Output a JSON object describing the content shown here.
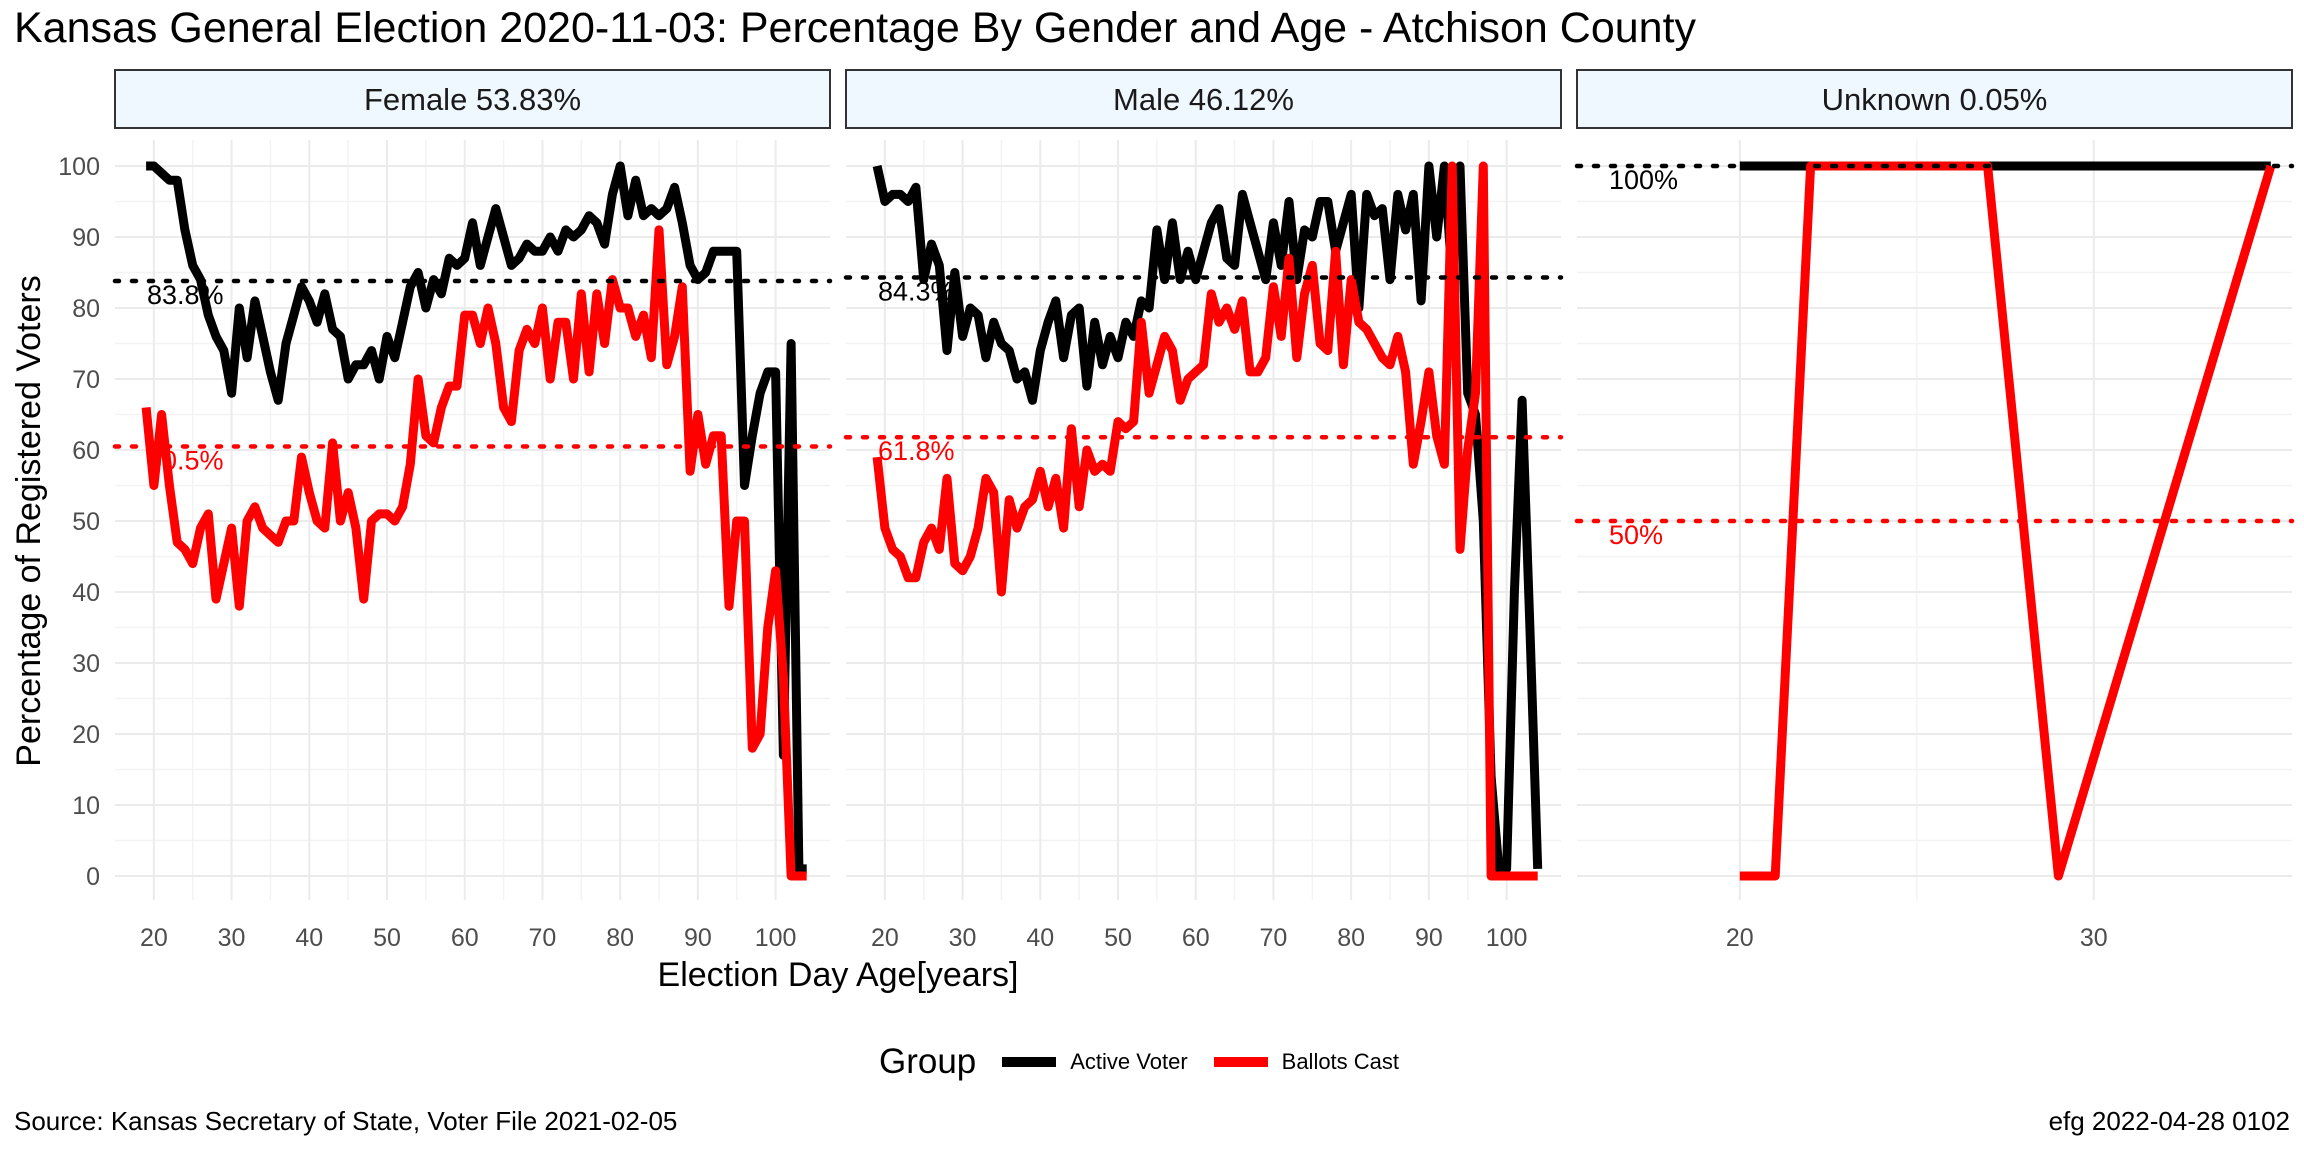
{
  "title": "Kansas General Election 2020-11-03:  Percentage By Gender and Age - Atchison County",
  "source": "Source:  Kansas Secretary of State, Voter File  2021-02-05",
  "stamp": "efg 2022-04-28 0102",
  "colors": {
    "active": "#000000",
    "ballots": "#ff0000",
    "strip_fill": "#f0f8ff",
    "grid": "#ebebeb"
  },
  "chart_data": {
    "type": "line",
    "xlabel": "Election Day Age[years]",
    "ylabel": "Percentage of Registered Voters",
    "ylim": [
      0,
      100
    ],
    "yticks": [
      0,
      10,
      20,
      30,
      40,
      50,
      60,
      70,
      80,
      90,
      100
    ],
    "grid": true,
    "legend": {
      "title": "Group",
      "position": "bottom",
      "entries": [
        "Active Voter",
        "Ballots Cast"
      ]
    },
    "panels": [
      {
        "strip": "Female 53.83%",
        "xlim": [
          15,
          107
        ],
        "xticks": [
          20,
          30,
          40,
          50,
          60,
          70,
          80,
          90,
          100
        ],
        "ref_lines": [
          {
            "series": "Active Voter",
            "value": 83.8,
            "label": "83.8%"
          },
          {
            "series": "Ballots Cast",
            "value": 60.5,
            "label": "60.5%"
          }
        ],
        "series": [
          {
            "name": "Active Voter",
            "x": [
              19,
              20,
              21,
              22,
              23,
              24,
              25,
              26,
              27,
              28,
              29,
              30,
              31,
              32,
              33,
              34,
              35,
              36,
              37,
              38,
              39,
              40,
              41,
              42,
              43,
              44,
              45,
              46,
              47,
              48,
              49,
              50,
              51,
              52,
              53,
              54,
              55,
              56,
              57,
              58,
              59,
              60,
              61,
              62,
              63,
              64,
              65,
              66,
              67,
              68,
              69,
              70,
              71,
              72,
              73,
              74,
              75,
              76,
              77,
              78,
              79,
              80,
              81,
              82,
              83,
              84,
              85,
              86,
              87,
              88,
              89,
              90,
              91,
              92,
              93,
              94,
              95,
              96,
              97,
              98,
              99,
              100,
              101,
              102,
              103,
              104
            ],
            "y": [
              100,
              100,
              99,
              98,
              98,
              91,
              86,
              84,
              79,
              76,
              74,
              68,
              80,
              73,
              81,
              76,
              71,
              67,
              75,
              79,
              83,
              81,
              78,
              82,
              77,
              76,
              70,
              72,
              72,
              74,
              70,
              76,
              73,
              78,
              83,
              85,
              80,
              84,
              82,
              87,
              86,
              87,
              92,
              86,
              90,
              94,
              90,
              86,
              87,
              89,
              88,
              88,
              90,
              88,
              91,
              90,
              91,
              93,
              92,
              89,
              96,
              100,
              93,
              98,
              93,
              94,
              93,
              94,
              97,
              92,
              86,
              84,
              85,
              88,
              88,
              88,
              88,
              55,
              62,
              68,
              71,
              71,
              17,
              75,
              1,
              1
            ]
          },
          {
            "name": "Ballots Cast",
            "x": [
              19,
              20,
              21,
              22,
              23,
              24,
              25,
              26,
              27,
              28,
              29,
              30,
              31,
              32,
              33,
              34,
              35,
              36,
              37,
              38,
              39,
              40,
              41,
              42,
              43,
              44,
              45,
              46,
              47,
              48,
              49,
              50,
              51,
              52,
              53,
              54,
              55,
              56,
              57,
              58,
              59,
              60,
              61,
              62,
              63,
              64,
              65,
              66,
              67,
              68,
              69,
              70,
              71,
              72,
              73,
              74,
              75,
              76,
              77,
              78,
              79,
              80,
              81,
              82,
              83,
              84,
              85,
              86,
              87,
              88,
              89,
              90,
              91,
              92,
              93,
              94,
              95,
              96,
              97,
              98,
              99,
              100,
              101,
              102,
              103,
              104
            ],
            "y": [
              66,
              55,
              65,
              55,
              47,
              46,
              44,
              49,
              51,
              39,
              44,
              49,
              38,
              50,
              52,
              49,
              48,
              47,
              50,
              50,
              59,
              54,
              50,
              49,
              61,
              50,
              54,
              49,
              39,
              50,
              51,
              51,
              50,
              52,
              58,
              70,
              62,
              61,
              66,
              69,
              69,
              79,
              79,
              75,
              80,
              75,
              66,
              64,
              74,
              77,
              75,
              80,
              70,
              78,
              78,
              70,
              82,
              71,
              82,
              75,
              84,
              80,
              80,
              76,
              79,
              73,
              91,
              72,
              76,
              83,
              57,
              65,
              58,
              62,
              62,
              38,
              50,
              50,
              18,
              20,
              35,
              43,
              28,
              0,
              0,
              0
            ]
          }
        ]
      },
      {
        "strip": "Male 46.12%",
        "xlim": [
          15,
          107
        ],
        "xticks": [
          20,
          30,
          40,
          50,
          60,
          70,
          80,
          90,
          100
        ],
        "ref_lines": [
          {
            "series": "Active Voter",
            "value": 84.3,
            "label": "84.3%"
          },
          {
            "series": "Ballots Cast",
            "value": 61.8,
            "label": "61.8%"
          }
        ],
        "series": [
          {
            "name": "Active Voter",
            "x": [
              19,
              20,
              21,
              22,
              23,
              24,
              25,
              26,
              27,
              28,
              29,
              30,
              31,
              32,
              33,
              34,
              35,
              36,
              37,
              38,
              39,
              40,
              41,
              42,
              43,
              44,
              45,
              46,
              47,
              48,
              49,
              50,
              51,
              52,
              53,
              54,
              55,
              56,
              57,
              58,
              59,
              60,
              61,
              62,
              63,
              64,
              65,
              66,
              67,
              68,
              69,
              70,
              71,
              72,
              73,
              74,
              75,
              76,
              77,
              78,
              79,
              80,
              81,
              82,
              83,
              84,
              85,
              86,
              87,
              88,
              89,
              90,
              91,
              92,
              93,
              94,
              95,
              96,
              97,
              98,
              99,
              100,
              101,
              102,
              103,
              104
            ],
            "y": [
              100,
              95,
              96,
              96,
              95,
              97,
              84,
              89,
              86,
              74,
              85,
              76,
              80,
              79,
              73,
              78,
              75,
              74,
              70,
              71,
              67,
              74,
              78,
              81,
              73,
              79,
              80,
              69,
              78,
              72,
              76,
              73,
              78,
              76,
              81,
              80,
              91,
              84,
              92,
              84,
              88,
              84,
              88,
              92,
              94,
              87,
              86,
              96,
              92,
              88,
              84,
              92,
              86,
              95,
              84,
              91,
              90,
              95,
              95,
              88,
              92,
              96,
              80,
              96,
              93,
              94,
              84,
              96,
              91,
              96,
              81,
              100,
              90,
              100,
              84,
              100,
              68,
              65,
              50,
              14,
              1,
              1,
              40,
              67,
              35,
              1
            ]
          },
          {
            "name": "Ballots Cast",
            "x": [
              19,
              20,
              21,
              22,
              23,
              24,
              25,
              26,
              27,
              28,
              29,
              30,
              31,
              32,
              33,
              34,
              35,
              36,
              37,
              38,
              39,
              40,
              41,
              42,
              43,
              44,
              45,
              46,
              47,
              48,
              49,
              50,
              51,
              52,
              53,
              54,
              55,
              56,
              57,
              58,
              59,
              60,
              61,
              62,
              63,
              64,
              65,
              66,
              67,
              68,
              69,
              70,
              71,
              72,
              73,
              74,
              75,
              76,
              77,
              78,
              79,
              80,
              81,
              82,
              83,
              84,
              85,
              86,
              87,
              88,
              89,
              90,
              91,
              92,
              93,
              94,
              95,
              96,
              97,
              98,
              99,
              100,
              101,
              102,
              103,
              104
            ],
            "y": [
              59,
              49,
              46,
              45,
              42,
              42,
              47,
              49,
              46,
              56,
              44,
              43,
              45,
              49,
              56,
              54,
              40,
              53,
              49,
              52,
              53,
              57,
              52,
              56,
              49,
              63,
              52,
              60,
              57,
              58,
              57,
              64,
              63,
              64,
              78,
              68,
              72,
              76,
              74,
              67,
              70,
              71,
              72,
              82,
              78,
              80,
              77,
              81,
              71,
              71,
              73,
              83,
              76,
              87,
              73,
              82,
              86,
              75,
              74,
              88,
              72,
              84,
              78,
              77,
              75,
              73,
              72,
              76,
              71,
              58,
              64,
              71,
              62,
              58,
              100,
              46,
              60,
              68,
              100,
              0,
              0,
              0,
              0,
              0,
              0,
              0
            ]
          }
        ]
      },
      {
        "strip": "Unknown 0.05%",
        "xlim": [
          15.4,
          35.6
        ],
        "xticks": [
          20,
          30
        ],
        "ref_lines": [
          {
            "series": "Active Voter",
            "value": 100,
            "label": "100%"
          },
          {
            "series": "Ballots Cast",
            "value": 50,
            "label": "50%"
          }
        ],
        "series": [
          {
            "name": "Active Voter",
            "x": [
              20,
              21,
              22,
              23,
              24,
              25,
              26,
              27,
              28,
              29,
              30,
              31,
              32,
              33,
              34,
              35
            ],
            "y": [
              100,
              100,
              100,
              100,
              100,
              100,
              100,
              100,
              100,
              100,
              100,
              100,
              100,
              100,
              100,
              100
            ]
          },
          {
            "name": "Ballots Cast",
            "x": [
              20,
              21,
              22,
              27,
              29,
              35
            ],
            "y": [
              0,
              0,
              100,
              100,
              0,
              100
            ]
          }
        ]
      }
    ]
  }
}
